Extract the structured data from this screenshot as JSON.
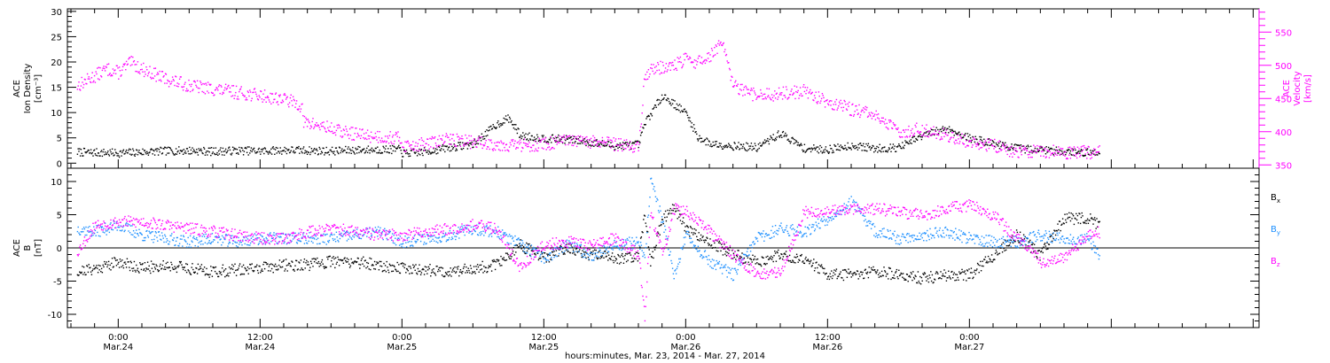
{
  "chart_data": [
    {
      "type": "scatter",
      "panel": "top",
      "ylabel_lines": [
        "ACE",
        "Ion Density",
        "[cm⁻³]"
      ],
      "ylabel_right_lines": [
        "ACE",
        "Velocity",
        "[km/s]"
      ],
      "ylim": [
        -1,
        30.5
      ],
      "yticks": [
        "0",
        "5",
        "10",
        "15",
        "20",
        "25",
        "30"
      ],
      "ylim_right": [
        345,
        585
      ],
      "yticks_right": [
        "350",
        "400",
        "450",
        "500",
        "550"
      ],
      "colors": {
        "density": "#000000",
        "velocity": "#ff00ff"
      },
      "series": [
        {
          "x": [
            -3.5,
            -2,
            0,
            2,
            4,
            6,
            8,
            10,
            12,
            14,
            16,
            18,
            20,
            22,
            23.9,
            24,
            26,
            28,
            30,
            32,
            33,
            34,
            36,
            38,
            40,
            42,
            44,
            44.5,
            46,
            48,
            49,
            50,
            52,
            54,
            56,
            58,
            60,
            62,
            64,
            66,
            68,
            70,
            72,
            74,
            76,
            78,
            80,
            82,
            83
          ],
          "y": [
            2.3,
            2.2,
            2.1,
            2.3,
            2.5,
            2.6,
            2.4,
            2.6,
            2.5,
            2.7,
            2.6,
            2.5,
            2.7,
            2.8,
            2.8,
            2.0,
            2.4,
            3.2,
            3.9,
            7.8,
            9.0,
            5.5,
            5.0,
            4.8,
            4.2,
            3.5,
            3.8,
            8.0,
            13.5,
            10.0,
            5.2,
            4.0,
            3.5,
            3.2,
            6.0,
            3.0,
            2.8,
            3.6,
            3.0,
            3.2,
            5.5,
            7.0,
            5.0,
            4.0,
            3.0,
            2.8,
            2.4,
            2.2,
            2.2
          ]
        },
        {
          "x": [
            -3.5,
            -2.5,
            -1,
            0,
            1,
            2,
            4,
            6,
            8,
            10,
            12,
            14,
            15.5,
            15.6,
            17,
            19,
            21,
            23,
            23.9,
            24,
            26,
            28,
            30,
            32,
            34,
            36,
            38,
            40,
            42,
            44,
            44.5,
            45,
            47,
            48,
            49,
            50,
            51,
            52,
            53,
            54,
            56,
            58,
            60,
            62,
            64,
            66,
            68,
            70,
            72,
            74,
            76,
            78,
            80,
            82,
            83
          ],
          "y": [
            470,
            480,
            495,
            490,
            505,
            495,
            480,
            470,
            465,
            460,
            455,
            450,
            440,
            415,
            410,
            400,
            395,
            392,
            390,
            380,
            382,
            390,
            385,
            382,
            380,
            382,
            387,
            385,
            382,
            378,
            485,
            495,
            500,
            510,
            505,
            515,
            535,
            470,
            460,
            455,
            458,
            462,
            445,
            435,
            425,
            400,
            405,
            395,
            385,
            380,
            370,
            372,
            370,
            370,
            370
          ]
        }
      ]
    },
    {
      "type": "scatter",
      "panel": "bottom",
      "ylabel_lines": [
        "ACE",
        "B",
        "[nT]"
      ],
      "ylim": [
        -12,
        12
      ],
      "yticks": [
        "-10",
        "-5",
        "0",
        "5",
        "10"
      ],
      "xticks": [
        {
          "time": "0:00",
          "date": "Mar.24"
        },
        {
          "time": "12:00",
          "date": "Mar.24"
        },
        {
          "time": "0:00",
          "date": "Mar.25"
        },
        {
          "time": "12:00",
          "date": "Mar.25"
        },
        {
          "time": "0:00",
          "date": "Mar.26"
        },
        {
          "time": "12:00",
          "date": "Mar.26"
        },
        {
          "time": "0:00",
          "date": "Mar.27"
        }
      ],
      "xlabel": "hours:minutes, Mar. 23, 2014 - Mar. 27, 2014",
      "xlim_hours": [
        -4.3,
        96.5
      ],
      "legend": [
        {
          "label": "B",
          "sub": "x",
          "color": "#000000"
        },
        {
          "label": "B",
          "sub": "y",
          "color": "#1e90ff"
        },
        {
          "label": "B",
          "sub": "z",
          "color": "#ff00ff"
        }
      ],
      "series": [
        {
          "x": [
            -3.5,
            -2,
            0,
            2,
            4,
            6,
            8,
            10,
            12,
            14,
            16,
            18,
            20,
            22,
            24,
            26,
            28,
            30,
            32,
            34,
            36,
            38,
            40,
            42,
            44,
            44.5,
            45,
            46,
            47,
            48,
            50,
            52,
            54,
            56,
            58,
            60,
            62,
            64,
            66,
            68,
            70,
            72,
            74,
            76,
            78,
            80,
            82,
            83
          ],
          "y": [
            -3.5,
            -3.0,
            -2.0,
            -3.0,
            -2.5,
            -3.0,
            -3.5,
            -3.2,
            -3.0,
            -2.5,
            -2.5,
            -2.0,
            -2.0,
            -2.5,
            -3.0,
            -3.2,
            -3.5,
            -3.0,
            -2.5,
            0.5,
            -1.5,
            0,
            -1.0,
            -1.5,
            -1.0,
            5.0,
            -2.0,
            4.5,
            6.0,
            3.0,
            1.0,
            -1.0,
            -2.0,
            -1.0,
            -1.5,
            -4.0,
            -4.0,
            -3.5,
            -4.0,
            -4.5,
            -4.0,
            -4.0,
            -1.0,
            2.0,
            -1.0,
            4.5,
            4.5,
            3.5
          ]
        },
        {
          "x": [
            -3.5,
            -2,
            0,
            2,
            4,
            6,
            8,
            10,
            12,
            14,
            16,
            18,
            20,
            22,
            24,
            26,
            28,
            30,
            32,
            34,
            36,
            38,
            40,
            42,
            44,
            44.5,
            45,
            46,
            47,
            48,
            50,
            52,
            54,
            56,
            58,
            60,
            62,
            64,
            66,
            68,
            70,
            72,
            74,
            76,
            78,
            80,
            82,
            83
          ],
          "y": [
            3.0,
            2.5,
            3.5,
            2.0,
            1.5,
            1.0,
            1.5,
            1.0,
            1.5,
            1.5,
            1.5,
            1.5,
            2.0,
            2.5,
            1.0,
            1.5,
            2.0,
            3.0,
            2.5,
            0.5,
            -1.5,
            0.5,
            -1.0,
            0.5,
            1.0,
            -2.0,
            10.5,
            4.0,
            -4.0,
            2.0,
            -2.0,
            -4.0,
            1.5,
            3.0,
            2.5,
            4.5,
            7.0,
            2.5,
            1.5,
            2.0,
            2.5,
            1.5,
            1.0,
            1.0,
            2.0,
            1.5,
            1.5,
            -1.0
          ]
        },
        {
          "x": [
            -3.5,
            -2,
            0,
            2,
            4,
            6,
            8,
            10,
            12,
            14,
            16,
            18,
            20,
            22,
            24,
            26,
            28,
            30,
            32,
            34,
            36,
            38,
            40,
            42,
            44,
            44.5,
            45,
            46,
            47,
            48,
            50,
            52,
            54,
            56,
            58,
            60,
            62,
            64,
            66,
            68,
            70,
            72,
            74,
            76,
            78,
            80,
            82,
            83
          ],
          "y": [
            -0.5,
            3.5,
            4.0,
            4.0,
            3.5,
            3.0,
            2.5,
            2.0,
            1.5,
            1.5,
            2.5,
            3.0,
            2.5,
            2.0,
            2.0,
            2.5,
            3.0,
            3.5,
            3.0,
            -3.0,
            0.5,
            1.0,
            0.5,
            1.5,
            -1.0,
            -10.5,
            5.5,
            -1.0,
            6.0,
            5.5,
            2.5,
            -1.0,
            -4.0,
            -3.5,
            5.5,
            5.5,
            6.0,
            6.0,
            5.5,
            5.0,
            6.0,
            6.5,
            5.0,
            1.5,
            -2.0,
            -1.5,
            2.0,
            2.5
          ]
        }
      ]
    }
  ]
}
